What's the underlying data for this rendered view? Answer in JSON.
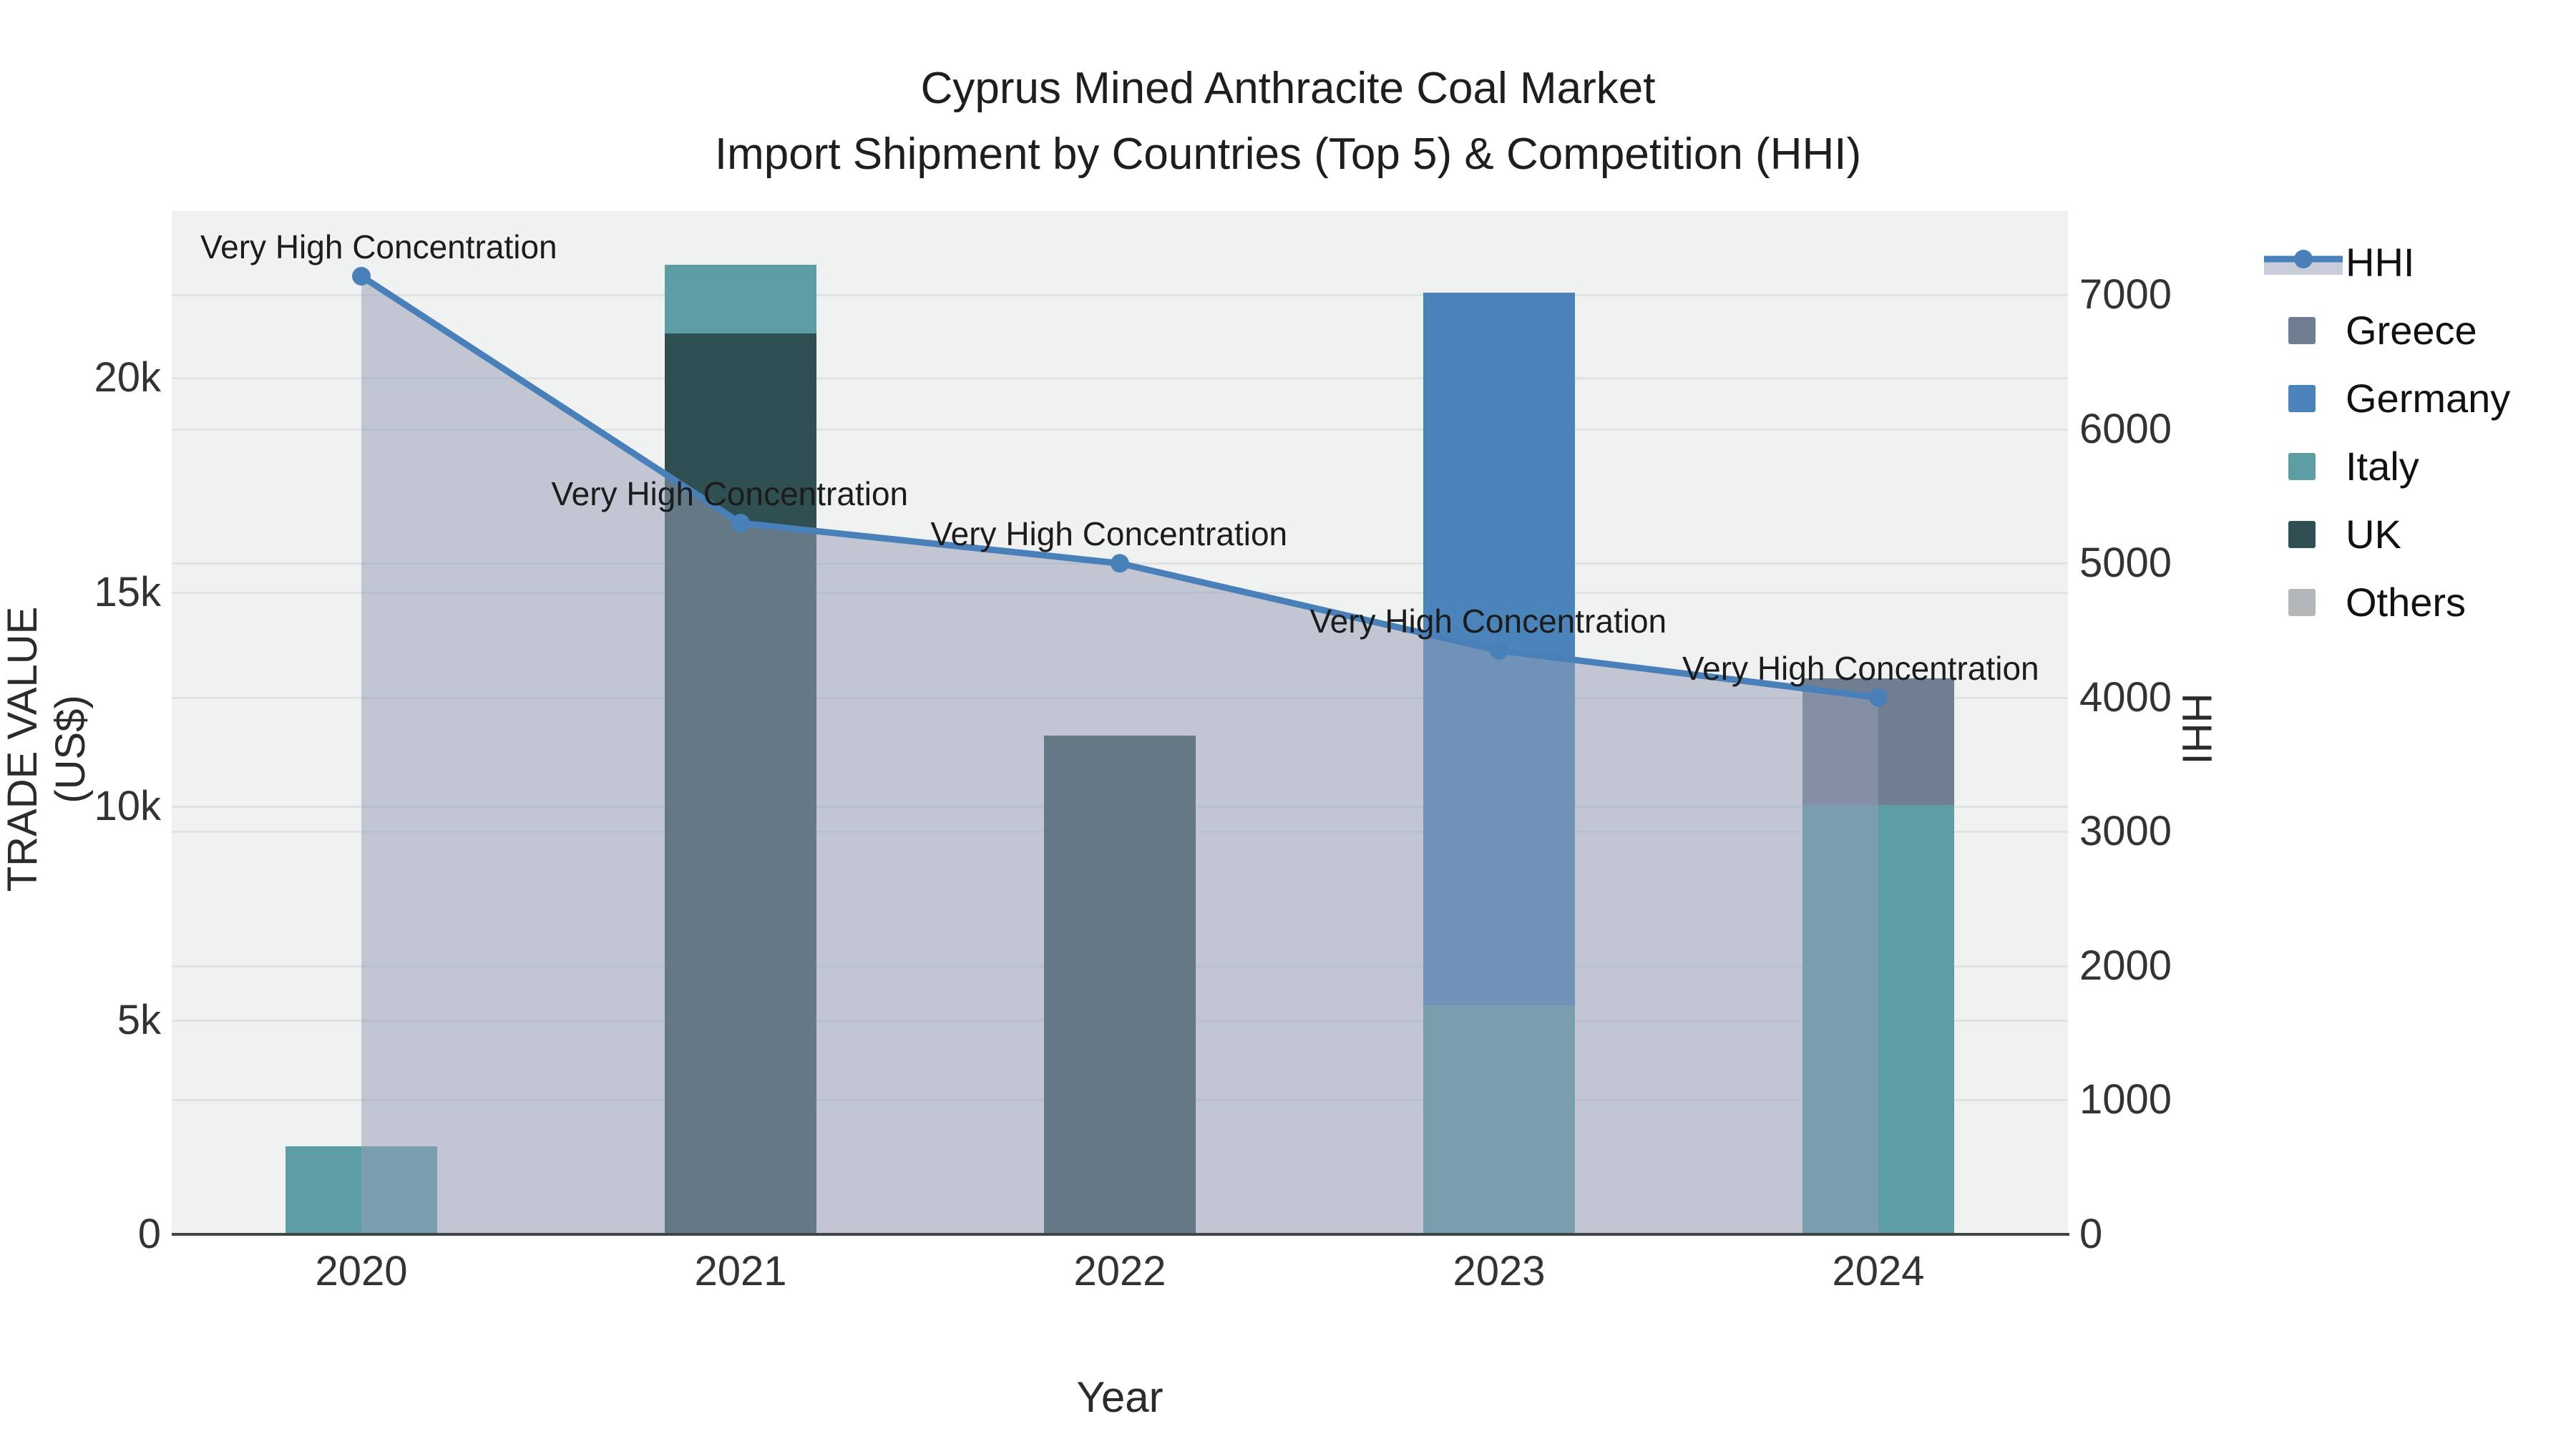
{
  "title": {
    "line1": "Cyprus Mined Anthracite Coal Market",
    "line2": "Import Shipment by Countries (Top 5) & Competition (HHI)"
  },
  "axes": {
    "x_title": "Year",
    "y_left_title": "TRADE VALUE (US$)",
    "y_right_title": "HHI",
    "y_left_ticks": [
      {
        "value": 0,
        "label": "0"
      },
      {
        "value": 5000,
        "label": "5k"
      },
      {
        "value": 10000,
        "label": "10k"
      },
      {
        "value": 15000,
        "label": "15k"
      },
      {
        "value": 20000,
        "label": "20k"
      }
    ],
    "y_right_ticks": [
      {
        "value": 0,
        "label": "0"
      },
      {
        "value": 1000,
        "label": "1000"
      },
      {
        "value": 2000,
        "label": "2000"
      },
      {
        "value": 3000,
        "label": "3000"
      },
      {
        "value": 4000,
        "label": "4000"
      },
      {
        "value": 5000,
        "label": "5000"
      },
      {
        "value": 6000,
        "label": "6000"
      },
      {
        "value": 7000,
        "label": "7000"
      }
    ],
    "y_left_max": 23900,
    "y_right_max": 7625
  },
  "chart_data": {
    "type": "bar",
    "subtype": "stacked bars + line on secondary axis",
    "categories": [
      "2020",
      "2021",
      "2022",
      "2023",
      "2024"
    ],
    "series": [
      {
        "name": "Greece",
        "axis": "left",
        "color": "#6F7E91",
        "values": [
          0,
          0,
          0,
          0,
          2950
        ]
      },
      {
        "name": "Germany",
        "axis": "left",
        "color": "#4A84BA",
        "values": [
          0,
          0,
          0,
          16650,
          0
        ]
      },
      {
        "name": "Italy",
        "axis": "left",
        "color": "#5C9EA3",
        "values": [
          2050,
          1590,
          0,
          5350,
          10030
        ]
      },
      {
        "name": "UK",
        "axis": "left",
        "color": "#2F4F53",
        "values": [
          0,
          21050,
          11650,
          0,
          0
        ]
      },
      {
        "name": "Others",
        "axis": "left",
        "color": "#B3B7BA",
        "values": [
          0,
          0,
          0,
          0,
          0
        ]
      }
    ],
    "stack_order_bottom_to_top": [
      "Others",
      "UK",
      "Italy",
      "Germany",
      "Greece"
    ],
    "line_series": {
      "name": "HHI",
      "axis": "right",
      "color": "#4A80BA",
      "fill_color": "rgba(150,160,182,0.52)",
      "values": [
        7140,
        5300,
        5000,
        4350,
        4000
      ]
    },
    "annotations": [
      {
        "text": "Very High Concentration",
        "category": "2020"
      },
      {
        "text": "Very High Concentration",
        "category": "2021"
      },
      {
        "text": "Very High Concentration",
        "category": "2022"
      },
      {
        "text": "Very High Concentration",
        "category": "2023"
      },
      {
        "text": "Very High Concentration",
        "category": "2024"
      }
    ],
    "title": "Cyprus Mined Anthracite Coal Market Import Shipment by Countries (Top 5) & Competition (HHI)",
    "xlabel": "Year",
    "ylabel": "TRADE VALUE (US$)",
    "ylabel_right": "HHI",
    "ylim_left": [
      0,
      23900
    ],
    "ylim_right": [
      0,
      7625
    ],
    "grid": true,
    "legend_position": "right"
  },
  "legend": {
    "items": [
      {
        "label": "HHI",
        "type": "line",
        "color": "#4A80BA"
      },
      {
        "label": "Greece",
        "type": "square",
        "color": "#6F7E91"
      },
      {
        "label": "Germany",
        "type": "square",
        "color": "#4A84BA"
      },
      {
        "label": "Italy",
        "type": "square",
        "color": "#5C9EA3"
      },
      {
        "label": "UK",
        "type": "square",
        "color": "#2F4F53"
      },
      {
        "label": "Others",
        "type": "square",
        "color": "#B3B7BA"
      }
    ]
  },
  "colors": {
    "plot_background": "#f0f1f1",
    "page_background": "#ffffff",
    "gridline": "rgba(90,100,110,0.10)",
    "axis_line": "#3f4647",
    "hhi_line": "#4A80BA",
    "hhi_area_fill": "rgba(150,160,182,0.52)"
  }
}
